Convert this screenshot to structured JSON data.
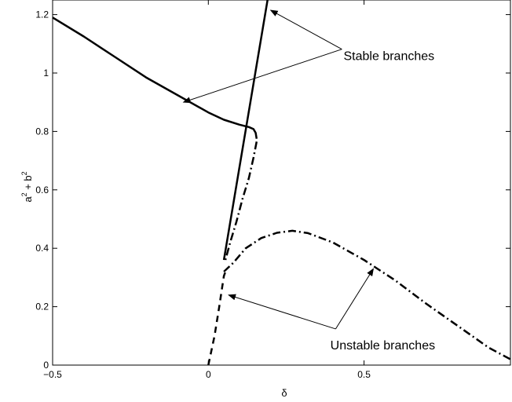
{
  "chart_data": {
    "type": "line",
    "xlabel": "δ",
    "ylabel_base": "a",
    "ylabel_mid": " + b",
    "ylabel_sup": "2",
    "xlim": [
      -0.5,
      0.97
    ],
    "ylim": [
      0,
      1.25
    ],
    "grid": false,
    "x_ticks": [
      {
        "value": -0.5,
        "label": "−0.5"
      },
      {
        "value": 0,
        "label": "0"
      },
      {
        "value": 0.5,
        "label": "0.5"
      }
    ],
    "y_ticks": [
      {
        "value": 0,
        "label": "0"
      },
      {
        "value": 0.2,
        "label": "0.2"
      },
      {
        "value": 0.4,
        "label": "0.4"
      },
      {
        "value": 0.6,
        "label": "0.6"
      },
      {
        "value": 0.8,
        "label": "0.8"
      },
      {
        "value": 1,
        "label": "1"
      },
      {
        "value": 1.2,
        "label": "1.2"
      }
    ],
    "series": [
      {
        "style": "solid",
        "points": [
          [
            -0.5,
            1.19
          ],
          [
            -0.4,
            1.125
          ],
          [
            -0.3,
            1.055
          ],
          [
            -0.2,
            0.985
          ],
          [
            -0.1,
            0.925
          ],
          [
            0,
            0.865
          ],
          [
            0.05,
            0.84
          ],
          [
            0.1,
            0.823
          ],
          [
            0.13,
            0.815
          ],
          [
            0.145,
            0.808
          ],
          [
            0.152,
            0.795
          ],
          [
            0.155,
            0.775
          ]
        ]
      },
      {
        "style": "solid",
        "points": [
          [
            0.05,
            0.36
          ],
          [
            0.19,
            1.25
          ]
        ]
      },
      {
        "style": "dashdot",
        "points": [
          [
            0.155,
            0.765
          ],
          [
            0.145,
            0.71
          ],
          [
            0.13,
            0.64
          ],
          [
            0.11,
            0.57
          ],
          [
            0.09,
            0.49
          ],
          [
            0.07,
            0.42
          ],
          [
            0.055,
            0.36
          ]
        ]
      },
      {
        "style": "dashed",
        "points": [
          [
            0,
            0
          ],
          [
            0.02,
            0.1
          ],
          [
            0.035,
            0.2
          ],
          [
            0.045,
            0.27
          ],
          [
            0.05,
            0.305
          ],
          [
            0.055,
            0.32
          ]
        ]
      },
      {
        "style": "dashdot",
        "points": [
          [
            0.05,
            0.32
          ],
          [
            0.08,
            0.35
          ],
          [
            0.12,
            0.4
          ],
          [
            0.17,
            0.435
          ],
          [
            0.22,
            0.453
          ],
          [
            0.27,
            0.46
          ],
          [
            0.32,
            0.452
          ],
          [
            0.4,
            0.42
          ],
          [
            0.5,
            0.36
          ],
          [
            0.6,
            0.29
          ],
          [
            0.7,
            0.21
          ],
          [
            0.8,
            0.135
          ],
          [
            0.9,
            0.06
          ],
          [
            0.97,
            0.02
          ]
        ]
      }
    ],
    "annotations": [
      {
        "text": "Stable branches",
        "x": 0.58,
        "y": 1.06,
        "arrows": [
          [
            0.2,
            1.215
          ],
          [
            -0.08,
            0.9
          ]
        ]
      },
      {
        "text": "Unstable branches",
        "x": 0.56,
        "y": 0.07,
        "arrows": [
          [
            0.065,
            0.24
          ],
          [
            0.53,
            0.33
          ]
        ]
      }
    ]
  }
}
